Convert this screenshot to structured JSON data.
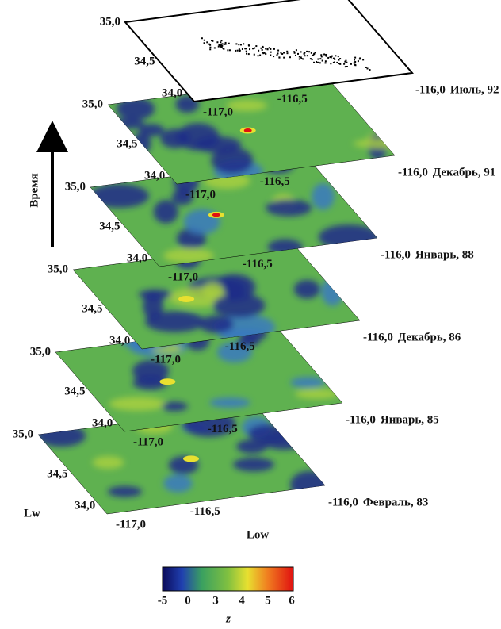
{
  "figure": {
    "time_label": "Время",
    "layers": [
      {
        "lat_labels": [
          "35,0",
          "34,5",
          "34,0"
        ],
        "lon_labels": [
          "-117,0",
          "-116,5",
          "-116,0"
        ],
        "date": "Февраль, 83"
      },
      {
        "lat_labels": [
          "35,0",
          "34,5",
          "34,0"
        ],
        "lon_labels": [
          "-117,0",
          "-116,5",
          "-116,0"
        ],
        "date": "Январь, 85"
      },
      {
        "lat_labels": [
          "35,0",
          "34,5",
          "34,0"
        ],
        "lon_labels": [
          "-117,0",
          "-116,5",
          "-116,0"
        ],
        "date": "Декабрь, 86"
      },
      {
        "lat_labels": [
          "35,0",
          "34,5",
          "34,0"
        ],
        "lon_labels": [
          "-117,0",
          "-116,5",
          "-116,0"
        ],
        "date": "Январь, 88"
      },
      {
        "lat_labels": [
          "35,0",
          "34,5",
          "34,0"
        ],
        "lon_labels": [
          "-117,0",
          "-116,5",
          "-116,0"
        ],
        "date": "Декабрь, 91"
      },
      {
        "lat_labels": [
          "35,0",
          "34,5",
          "34,0"
        ],
        "lon_labels": [
          "-117,0",
          "-116,5",
          "-116,0"
        ],
        "date": "Июль, 92"
      }
    ],
    "corner_labels": [
      "Lw",
      "Low"
    ],
    "colorbar": {
      "ticks": [
        -5,
        0,
        3,
        4,
        5,
        6
      ],
      "label": "z"
    }
  }
}
